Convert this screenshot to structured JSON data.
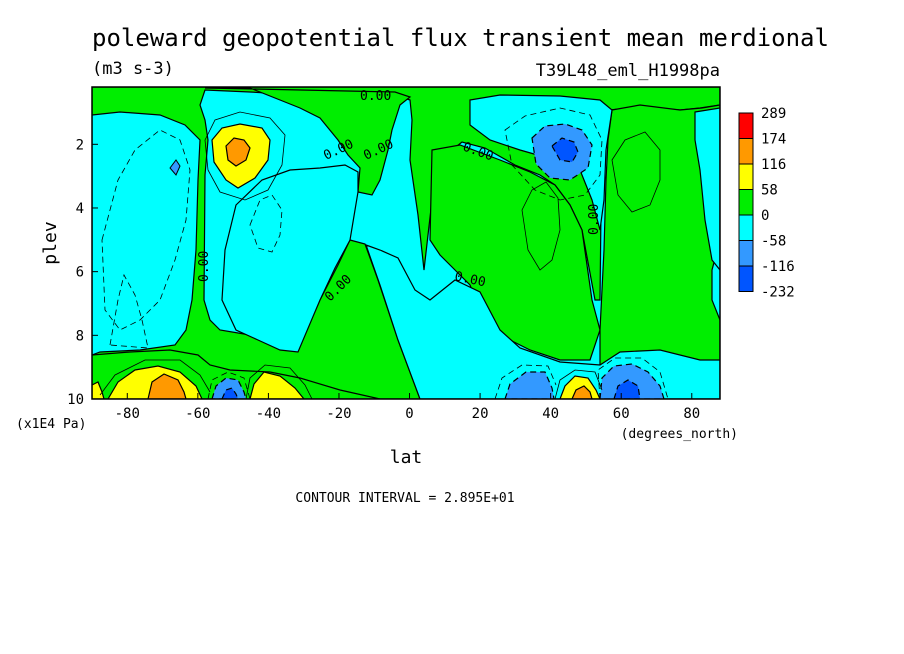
{
  "chart_data": {
    "type": "heatmap",
    "title": "poleward geopotential flux transient mean merdional",
    "units": "(m3 s-3)",
    "experiment": "T39L48_eml_H1998pa",
    "xlabel": "lat",
    "ylabel": "plev",
    "x_units": "(degrees_north)",
    "y_units": "(x1E4 Pa)",
    "xlim": [
      -90,
      88
    ],
    "ylim": [
      10,
      0.2
    ],
    "x_ticks": [
      -80,
      -60,
      -40,
      -20,
      0,
      20,
      40,
      60,
      80
    ],
    "y_ticks": [
      2,
      4,
      6,
      8,
      10
    ],
    "x_tick_labels": [
      "-80",
      "-60",
      "-40",
      "-20",
      "0",
      "20",
      "40",
      "60",
      "80"
    ],
    "y_tick_labels": [
      "2",
      "4",
      "6",
      "8",
      "10"
    ],
    "contour_interval_text": "CONTOUR INTERVAL = 2.895E+01",
    "contour_labels": [
      "0.00",
      "0.00",
      "0.00",
      "0.00",
      "0.00",
      "0.00",
      "0.00",
      "0.00",
      "0.00"
    ],
    "colorbar": {
      "labels": [
        "289",
        "174",
        "116",
        "58",
        "0",
        "-58",
        "-116",
        "-232"
      ],
      "colors": [
        "#ff0000",
        "#ff9900",
        "#ffff00",
        "#00ee00",
        "#00ffff",
        "#3399ff",
        "#0055ff"
      ]
    },
    "color_levels": [
      -232,
      -116,
      -58,
      0,
      58,
      116,
      174,
      289
    ],
    "features": [
      {
        "lat": -50,
        "plev": 2.2,
        "value": 150
      },
      {
        "lat": -67,
        "plev": 9.6,
        "value": 145
      },
      {
        "lat": -40,
        "plev": 9.6,
        "value": 85
      },
      {
        "lat": -50,
        "plev": 9.8,
        "value": -130
      },
      {
        "lat": 45,
        "plev": 2.0,
        "value": -125
      },
      {
        "lat": 47,
        "plev": 9.8,
        "value": 90
      },
      {
        "lat": 63,
        "plev": 9.6,
        "value": -200
      },
      {
        "lat": 37,
        "plev": 9.6,
        "value": -90
      },
      {
        "lat": -74,
        "plev": 2.6,
        "value": -60
      },
      {
        "lat": -85,
        "plev": 9.8,
        "value": 70
      }
    ],
    "grid": false,
    "legend": "right"
  },
  "icons": {
    "note": "none"
  }
}
